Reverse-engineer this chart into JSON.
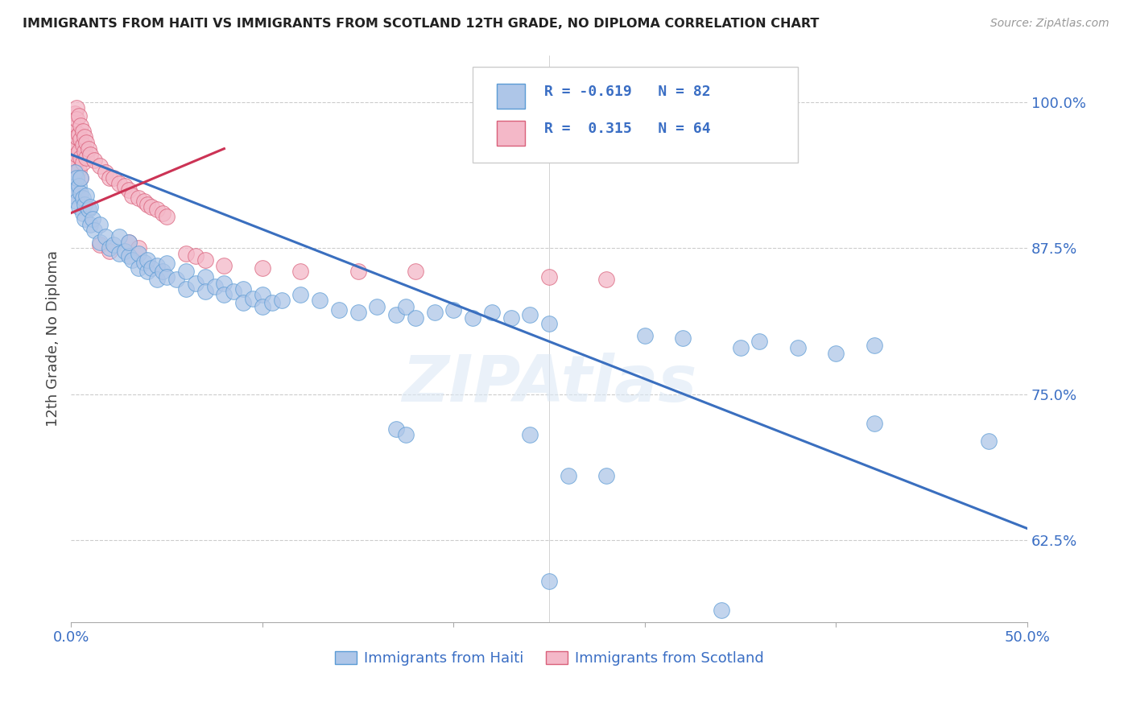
{
  "title": "IMMIGRANTS FROM HAITI VS IMMIGRANTS FROM SCOTLAND 12TH GRADE, NO DIPLOMA CORRELATION CHART",
  "source": "Source: ZipAtlas.com",
  "ylabel": "12th Grade, No Diploma",
  "ytick_vals": [
    1.0,
    0.875,
    0.75,
    0.625
  ],
  "ytick_labels": [
    "100.0%",
    "87.5%",
    "75.0%",
    "62.5%"
  ],
  "xmin": 0.0,
  "xmax": 0.5,
  "ymin": 0.555,
  "ymax": 1.04,
  "haiti_color": "#aec6e8",
  "haiti_edge": "#5b9bd5",
  "scotland_color": "#f4b8c8",
  "scotland_edge": "#d9607a",
  "line_haiti_color": "#3a6fbf",
  "line_scotland_color": "#cc3355",
  "haiti_R": -0.619,
  "haiti_N": 82,
  "scotland_R": 0.315,
  "scotland_N": 64,
  "legend_label_haiti": "Immigrants from Haiti",
  "legend_label_scotland": "Immigrants from Scotland",
  "watermark": "ZIPAtlas",
  "haiti_line_x0": 0.0,
  "haiti_line_y0": 0.955,
  "haiti_line_x1": 0.5,
  "haiti_line_y1": 0.635,
  "scotland_line_x0": 0.0,
  "scotland_line_y0": 0.905,
  "scotland_line_x1": 0.08,
  "scotland_line_y1": 0.96
}
